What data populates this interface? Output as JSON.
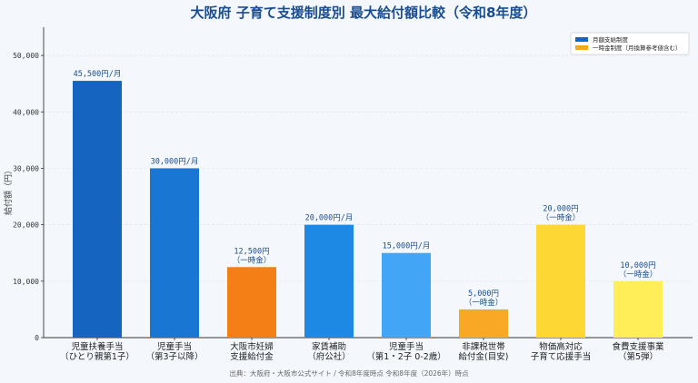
{
  "chart_data": {
    "type": "bar",
    "title": "大阪府 子育て支援制度別 最大給付額比較（令和8年度）",
    "ylabel": "給付額（円）",
    "xlabel": "",
    "ylim": [
      0,
      55000
    ],
    "yticks": [
      0,
      10000,
      20000,
      30000,
      40000,
      50000
    ],
    "ytick_labels": [
      "0",
      "10,000",
      "20,000",
      "30,000",
      "40,000",
      "50,000"
    ],
    "grid": true,
    "legend_placement": "top-right",
    "legend": [
      {
        "label": "月額支給制度",
        "color": "#1565c0"
      },
      {
        "label": "一時金制度（月換算参考値含む）",
        "color": "#f9a825"
      }
    ],
    "categories": [
      [
        "児童扶養手当",
        "（ひとり親第1子）"
      ],
      [
        "児童手当",
        "（第3子以降）"
      ],
      [
        "大阪市妊婦",
        "支援給付金"
      ],
      [
        "家賃補助",
        "（府公社）"
      ],
      [
        "児童手当",
        "（第1・2子 0-2歳）"
      ],
      [
        "非課税世帯",
        "給付金(目安)"
      ],
      [
        "物価高対応",
        "子育て応援手当"
      ],
      [
        "食費支援事業",
        "（第5弾）"
      ]
    ],
    "values": [
      45500,
      30000,
      12500,
      20000,
      15000,
      5000,
      20000,
      10000
    ],
    "data_labels": [
      [
        "45,500円/月"
      ],
      [
        "30,000円/月"
      ],
      [
        "12,500円",
        "（一時金）"
      ],
      [
        "20,000円/月"
      ],
      [
        "15,000円/月"
      ],
      [
        "5,000円",
        "（一時金）"
      ],
      [
        "20,000円",
        "（一時金）"
      ],
      [
        "10,000円",
        "（一時金）"
      ]
    ],
    "colors": [
      "#1565c0",
      "#1976d2",
      "#f57f17",
      "#1e88e5",
      "#42a5f5",
      "#f9a825",
      "#fdd835",
      "#ffee58"
    ],
    "source": "出典：大阪府・大阪市公式サイト / 令和8年度時点 令和8年度（2026年）時点"
  }
}
